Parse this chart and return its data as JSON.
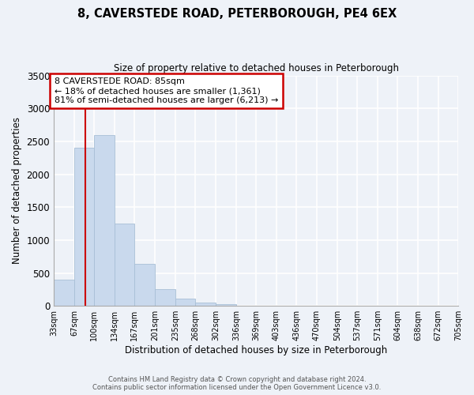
{
  "title": "8, CAVERSTEDE ROAD, PETERBOROUGH, PE4 6EX",
  "subtitle": "Size of property relative to detached houses in Peterborough",
  "xlabel": "Distribution of detached houses by size in Peterborough",
  "ylabel": "Number of detached properties",
  "bin_labels": [
    "33sqm",
    "67sqm",
    "100sqm",
    "134sqm",
    "167sqm",
    "201sqm",
    "235sqm",
    "268sqm",
    "302sqm",
    "336sqm",
    "369sqm",
    "403sqm",
    "436sqm",
    "470sqm",
    "504sqm",
    "537sqm",
    "571sqm",
    "604sqm",
    "638sqm",
    "672sqm",
    "705sqm"
  ],
  "bar_heights": [
    400,
    2400,
    2600,
    1250,
    640,
    260,
    110,
    55,
    30,
    0,
    0,
    0,
    0,
    0,
    0,
    0,
    0,
    0,
    0,
    0
  ],
  "bar_color": "#c9d9ed",
  "bar_edge_color": "#a8bfd6",
  "vline_x_index": 1.55,
  "vline_color": "#cc0000",
  "ylim": [
    0,
    3500
  ],
  "yticks": [
    0,
    500,
    1000,
    1500,
    2000,
    2500,
    3000,
    3500
  ],
  "annotation_text": "8 CAVERSTEDE ROAD: 85sqm\n← 18% of detached houses are smaller (1,361)\n81% of semi-detached houses are larger (6,213) →",
  "annotation_box_color": "#ffffff",
  "annotation_box_edge": "#cc0000",
  "footer_line1": "Contains HM Land Registry data © Crown copyright and database right 2024.",
  "footer_line2": "Contains public sector information licensed under the Open Government Licence v3.0.",
  "bin_edges": [
    33,
    67,
    100,
    134,
    167,
    201,
    235,
    268,
    302,
    336,
    369,
    403,
    436,
    470,
    504,
    537,
    571,
    604,
    638,
    672,
    705
  ],
  "background_color": "#eef2f8",
  "grid_color": "#ffffff",
  "n_bars": 20
}
